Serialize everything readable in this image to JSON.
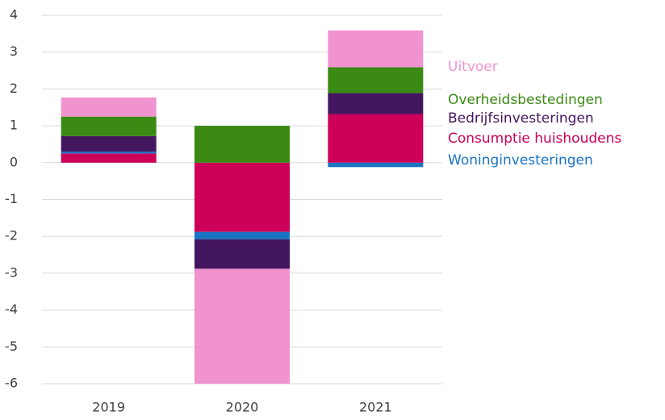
{
  "chart_data": {
    "type": "bar",
    "stacked": true,
    "categories": [
      "2019",
      "2020",
      "2021"
    ],
    "series": [
      {
        "name": "Consumptie huishoudens",
        "color": "#cc0058",
        "values": [
          0.25,
          -1.88,
          1.32
        ]
      },
      {
        "name": "Woninginvesteringen",
        "color": "#1a73c4",
        "values": [
          0.05,
          -0.2,
          -0.12
        ]
      },
      {
        "name": "Bedrijfsinvesteringen",
        "color": "#43175f",
        "values": [
          0.42,
          -0.8,
          0.57
        ]
      },
      {
        "name": "Overheidsbestedingen",
        "color": "#3a8a13",
        "values": [
          0.53,
          1.0,
          0.7
        ]
      },
      {
        "name": "Uitvoer",
        "color": "#f093cf",
        "values": [
          0.52,
          -3.12,
          1.0
        ]
      }
    ],
    "ylim": [
      -6,
      4
    ],
    "yticks": [
      -6,
      -5,
      -4,
      -3,
      -2,
      -1,
      0,
      1,
      2,
      3,
      4
    ],
    "grid": true
  }
}
